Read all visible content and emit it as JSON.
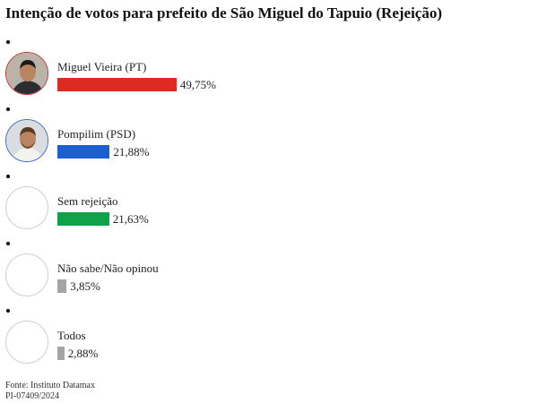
{
  "chart_data": {
    "type": "bar",
    "title": "Intenção de votos para prefeito de São Miguel do Tapuio (Rejeição)",
    "categories": [
      "Miguel Vieira (PT)",
      "Pompilim (PSD)",
      "Sem rejeição",
      "Não sabe/Não opinou",
      "Todos"
    ],
    "values": [
      49.75,
      21.88,
      21.63,
      3.85,
      2.88
    ],
    "value_labels": [
      "49,75%",
      "21,88%",
      "21,63%",
      "3,85%",
      "2,88%"
    ],
    "colors": [
      "#dd2a22",
      "#1e5fd0",
      "#10a24b",
      "#a4a4a4",
      "#a4a4a4"
    ],
    "photos": [
      "candidate-photo",
      "candidate-photo",
      "",
      "",
      ""
    ],
    "avatar_ring_colors": [
      "#c5302a",
      "#3d69c6",
      "#cfcfcf",
      "#cfcfcf",
      "#cfcfcf"
    ],
    "xlim": [
      0,
      100
    ]
  },
  "footer": {
    "source": "Fonte: Instituto Datamax",
    "registration": "PI-07409/2024"
  }
}
